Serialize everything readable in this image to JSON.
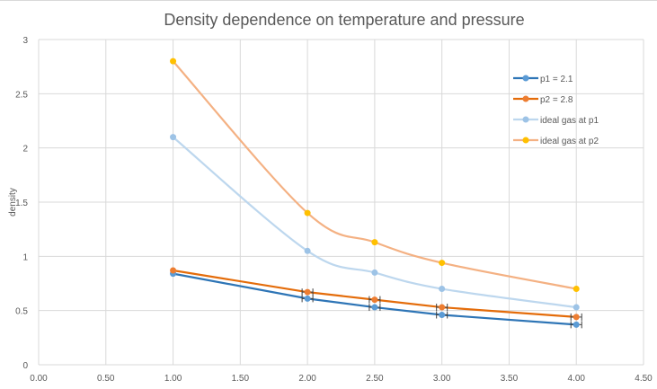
{
  "chart_data": {
    "type": "line",
    "title": "Density dependence on temperature and pressure",
    "xlabel": "",
    "ylabel": "density",
    "xlim": [
      0,
      4.5
    ],
    "ylim": [
      0,
      3
    ],
    "x_ticks": [
      "0.00",
      "0.50",
      "1.00",
      "1.50",
      "2.00",
      "2.50",
      "3.00",
      "3.50",
      "4.00",
      "4.50"
    ],
    "x_tick_values": [
      0,
      0.5,
      1,
      1.5,
      2,
      2.5,
      3,
      3.5,
      4,
      4.5
    ],
    "y_ticks": [
      "0",
      "0.5",
      "1",
      "1.5",
      "2",
      "2.5",
      "3"
    ],
    "y_tick_values": [
      0,
      0.5,
      1,
      1.5,
      2,
      2.5,
      3
    ],
    "grid": true,
    "legend_position": "top-right",
    "x": [
      1,
      2,
      2.5,
      3,
      4
    ],
    "series": [
      {
        "name": "p1 = 2.1",
        "color": "#2e75b6",
        "marker_color": "#5b9bd5",
        "smooth": false,
        "error_bars_x": true,
        "values": [
          0.84,
          0.61,
          0.53,
          0.46,
          0.37
        ]
      },
      {
        "name": "p2 = 2.8",
        "color": "#e46c0a",
        "marker_color": "#ed7d31",
        "smooth": false,
        "error_bars_x": true,
        "values": [
          0.87,
          0.67,
          0.6,
          0.53,
          0.44
        ]
      },
      {
        "name": "ideal gas at p1",
        "color": "#bdd7ee",
        "marker_color": "#9dc3e6",
        "smooth": true,
        "error_bars_x": false,
        "values": [
          2.1,
          1.05,
          0.85,
          0.7,
          0.53
        ]
      },
      {
        "name": "ideal gas at p2",
        "color": "#f4b183",
        "marker_color": "#ffc000",
        "smooth": true,
        "error_bars_x": false,
        "values": [
          2.8,
          1.4,
          1.13,
          0.94,
          0.7
        ]
      }
    ]
  }
}
